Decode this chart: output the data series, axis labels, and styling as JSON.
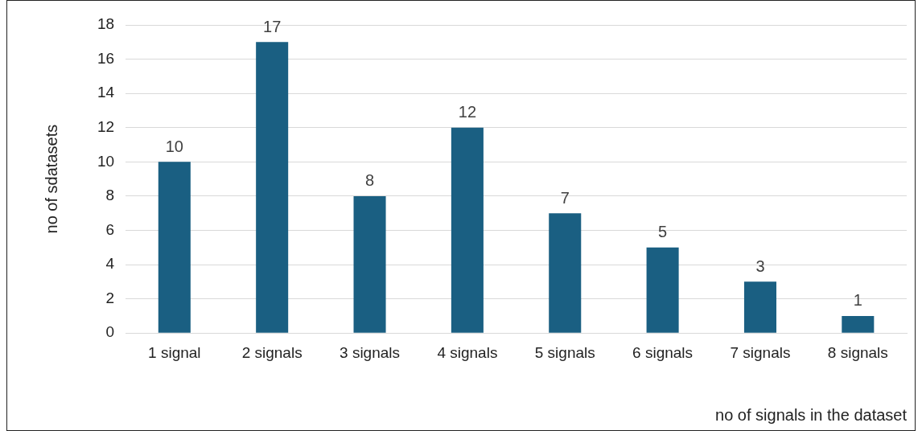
{
  "chart_data": {
    "type": "bar",
    "xlabel": "no of signals in the dataset",
    "ylabel": "no of sdatasets",
    "categories": [
      "1 signal",
      "2 signals",
      "3 signals",
      "4 signals",
      "5 signals",
      "6 signals",
      "7 signals",
      "8 signals"
    ],
    "values": [
      10,
      17,
      8,
      12,
      7,
      5,
      3,
      1
    ],
    "color": "#1a5f82",
    "ylim": [
      0,
      18
    ],
    "yticks": [
      0,
      2,
      4,
      6,
      8,
      10,
      12,
      14,
      16,
      18
    ],
    "grid": "y",
    "data_labels": true,
    "legend": false
  }
}
